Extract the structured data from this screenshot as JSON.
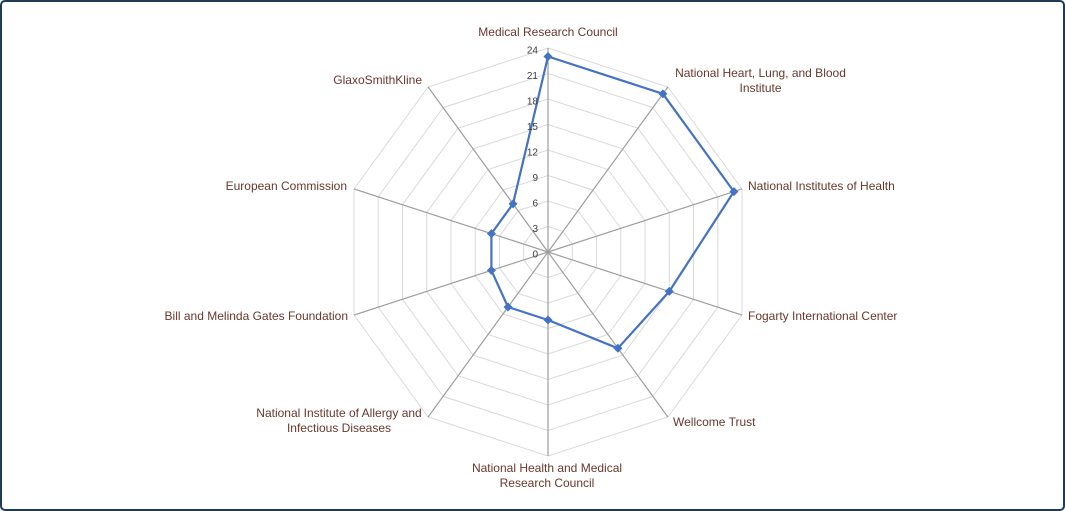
{
  "frame": {
    "background": "#ffffff",
    "border_color": "#1f3a56"
  },
  "chart_data": {
    "type": "radar",
    "title": "",
    "legend": "none",
    "categories": [
      "Medical Research Council",
      "National Heart, Lung, and Blood Institute",
      "National Institutes of Health",
      "Fogarty International Center",
      "Wellcome Trust",
      "National Health and Medical Research Council",
      "National Institute of Allergy and Infectious Diseases",
      "Bill and Melinda Gates Foundation",
      "European Commission",
      "GlaxoSmithKline"
    ],
    "values": [
      23,
      23,
      23,
      15,
      14,
      8,
      8,
      7,
      7,
      7
    ],
    "radial_axis": {
      "min": 0,
      "max": 24,
      "tick_interval": 3,
      "tick_labels": [
        "0",
        "3",
        "6",
        "9",
        "12",
        "15",
        "18",
        "21",
        "24"
      ]
    },
    "grid": "on",
    "colors": {
      "series": "#4472c4",
      "ring_gridline": "#d9d9d9",
      "spoke": "#9e9e9e",
      "category_label": "#6a372b",
      "tick_label": "#3d3d3d"
    }
  }
}
